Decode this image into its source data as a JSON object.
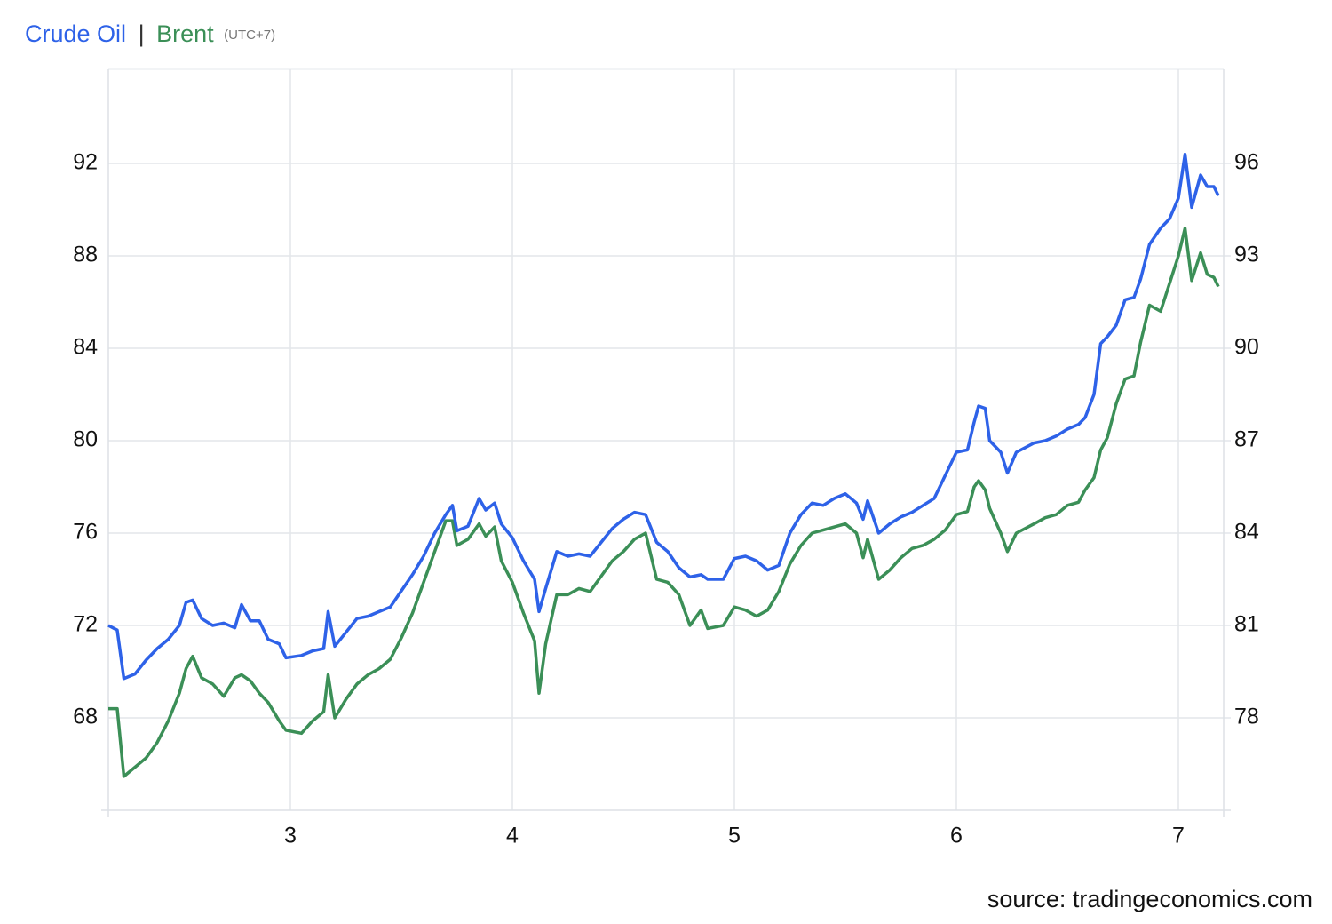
{
  "chart_data": {
    "type": "line",
    "title_separator": "|",
    "timezone": "(UTC+7)",
    "source": "source: tradingeconomics.com",
    "grid": true,
    "xlim": [
      2.18,
      7.204
    ],
    "xticks": [
      3,
      4,
      5,
      6,
      7
    ],
    "ylim": [
      64,
      96
    ],
    "yticks": [
      68,
      72,
      76,
      80,
      84,
      88,
      92
    ],
    "y2lim": [
      75,
      99
    ],
    "y2ticks": [
      78,
      81,
      84,
      87,
      90,
      93,
      96
    ],
    "x": [
      2.18,
      2.22,
      2.25,
      2.3,
      2.35,
      2.4,
      2.45,
      2.5,
      2.53,
      2.56,
      2.6,
      2.65,
      2.7,
      2.75,
      2.78,
      2.82,
      2.86,
      2.9,
      2.95,
      2.98,
      3.05,
      3.1,
      3.15,
      3.17,
      3.2,
      3.25,
      3.3,
      3.35,
      3.4,
      3.45,
      3.5,
      3.55,
      3.6,
      3.65,
      3.7,
      3.73,
      3.75,
      3.8,
      3.85,
      3.88,
      3.92,
      3.95,
      4.0,
      4.05,
      4.1,
      4.12,
      4.15,
      4.2,
      4.25,
      4.3,
      4.35,
      4.4,
      4.45,
      4.5,
      4.55,
      4.6,
      4.65,
      4.7,
      4.75,
      4.8,
      4.85,
      4.88,
      4.95,
      5.0,
      5.05,
      5.1,
      5.15,
      5.2,
      5.25,
      5.3,
      5.35,
      5.4,
      5.45,
      5.5,
      5.55,
      5.58,
      5.6,
      5.65,
      5.7,
      5.75,
      5.8,
      5.85,
      5.9,
      5.95,
      6.0,
      6.05,
      6.08,
      6.1,
      6.13,
      6.15,
      6.2,
      6.23,
      6.27,
      6.35,
      6.4,
      6.45,
      6.5,
      6.55,
      6.58,
      6.62,
      6.65,
      6.68,
      6.72,
      6.76,
      6.8,
      6.83,
      6.87,
      6.92,
      6.96,
      7.0,
      7.03,
      7.06,
      7.1,
      7.13,
      7.16,
      7.18
    ],
    "series": [
      {
        "name": "Crude Oil",
        "color": "#2e62e8",
        "axis": "y",
        "values": [
          72.0,
          71.8,
          69.7,
          69.9,
          70.5,
          71.0,
          71.4,
          72.0,
          73.0,
          73.1,
          72.3,
          72.0,
          72.1,
          71.9,
          72.9,
          72.2,
          72.2,
          71.4,
          71.2,
          70.6,
          70.7,
          70.9,
          71.0,
          72.6,
          71.1,
          71.7,
          72.3,
          72.4,
          72.6,
          72.8,
          73.5,
          74.2,
          75.0,
          76.0,
          76.8,
          77.2,
          76.1,
          76.3,
          77.5,
          77.0,
          77.3,
          76.4,
          75.8,
          74.8,
          74.0,
          72.6,
          73.6,
          75.2,
          75.0,
          75.1,
          75.0,
          75.6,
          76.2,
          76.6,
          76.9,
          76.8,
          75.6,
          75.2,
          74.5,
          74.1,
          74.2,
          74.0,
          74.0,
          74.9,
          75.0,
          74.8,
          74.4,
          74.6,
          76.0,
          76.8,
          77.3,
          77.2,
          77.5,
          77.7,
          77.3,
          76.6,
          77.4,
          76.0,
          76.4,
          76.7,
          76.9,
          77.2,
          77.5,
          78.5,
          79.5,
          79.6,
          80.8,
          81.5,
          81.4,
          80.0,
          79.5,
          78.6,
          79.5,
          79.9,
          80.0,
          80.2,
          80.5,
          80.7,
          81.0,
          82.0,
          84.2,
          84.5,
          85.0,
          86.1,
          86.2,
          87.0,
          88.5,
          89.2,
          89.6,
          90.5,
          92.4,
          90.1,
          91.5,
          91.0,
          91.0,
          90.6
        ]
      },
      {
        "name": "Brent",
        "color": "#3b8f57",
        "axis": "y2",
        "values": [
          78.3,
          78.3,
          76.1,
          76.4,
          76.7,
          77.2,
          77.9,
          78.8,
          79.6,
          80.0,
          79.3,
          79.1,
          78.7,
          79.3,
          79.4,
          79.2,
          78.8,
          78.5,
          77.9,
          77.6,
          77.5,
          77.9,
          78.2,
          79.4,
          78.0,
          78.6,
          79.1,
          79.4,
          79.6,
          79.9,
          80.6,
          81.4,
          82.4,
          83.4,
          84.4,
          84.4,
          83.6,
          83.8,
          84.3,
          83.9,
          84.2,
          83.1,
          82.4,
          81.4,
          80.5,
          78.8,
          80.4,
          82.0,
          82.0,
          82.2,
          82.1,
          82.6,
          83.1,
          83.4,
          83.8,
          84.0,
          82.5,
          82.4,
          82.0,
          81.0,
          81.5,
          80.9,
          81.0,
          81.6,
          81.5,
          81.3,
          81.5,
          82.1,
          83.0,
          83.6,
          84.0,
          84.1,
          84.2,
          84.3,
          84.0,
          83.2,
          83.8,
          82.5,
          82.8,
          83.2,
          83.5,
          83.6,
          83.8,
          84.1,
          84.6,
          84.7,
          85.5,
          85.7,
          85.4,
          84.8,
          84.0,
          83.4,
          84.0,
          84.3,
          84.5,
          84.6,
          84.9,
          85.0,
          85.4,
          85.8,
          86.7,
          87.1,
          88.2,
          89.0,
          89.1,
          90.2,
          91.4,
          91.2,
          92.1,
          93.0,
          93.9,
          92.2,
          93.1,
          92.4,
          92.3,
          92.0
        ]
      }
    ]
  }
}
